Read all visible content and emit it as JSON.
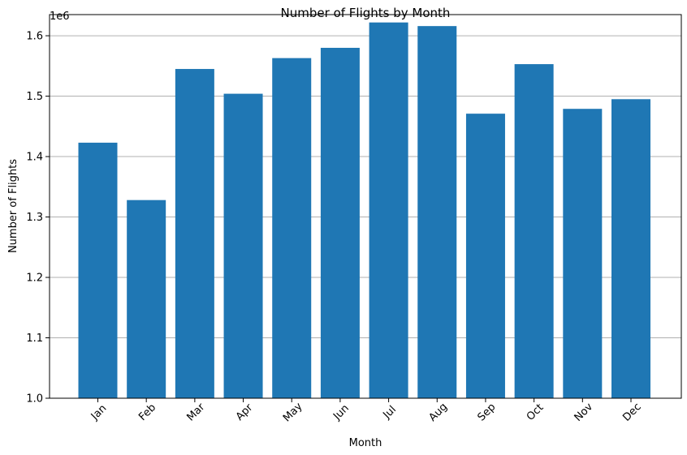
{
  "chart_data": {
    "type": "bar",
    "title": "Number of Flights by Month",
    "xlabel": "Month",
    "ylabel": "Number of Flights",
    "offset_label": "1e6",
    "categories": [
      "Jan",
      "Feb",
      "Mar",
      "Apr",
      "May",
      "Jun",
      "Jul",
      "Aug",
      "Sep",
      "Oct",
      "Nov",
      "Dec"
    ],
    "values": [
      1423000,
      1328000,
      1545000,
      1504000,
      1563000,
      1580000,
      1622000,
      1616000,
      1471000,
      1553000,
      1479000,
      1495000
    ],
    "ylim": [
      1000000,
      1635000
    ],
    "yticks": [
      1.0,
      1.1,
      1.2,
      1.3,
      1.4,
      1.5,
      1.6
    ],
    "ytick_labels": [
      "1.0",
      "1.1",
      "1.2",
      "1.3",
      "1.4",
      "1.5",
      "1.6"
    ],
    "grid": "y",
    "bar_color": "#1f77b4",
    "grid_color": "#b0b0b0"
  }
}
